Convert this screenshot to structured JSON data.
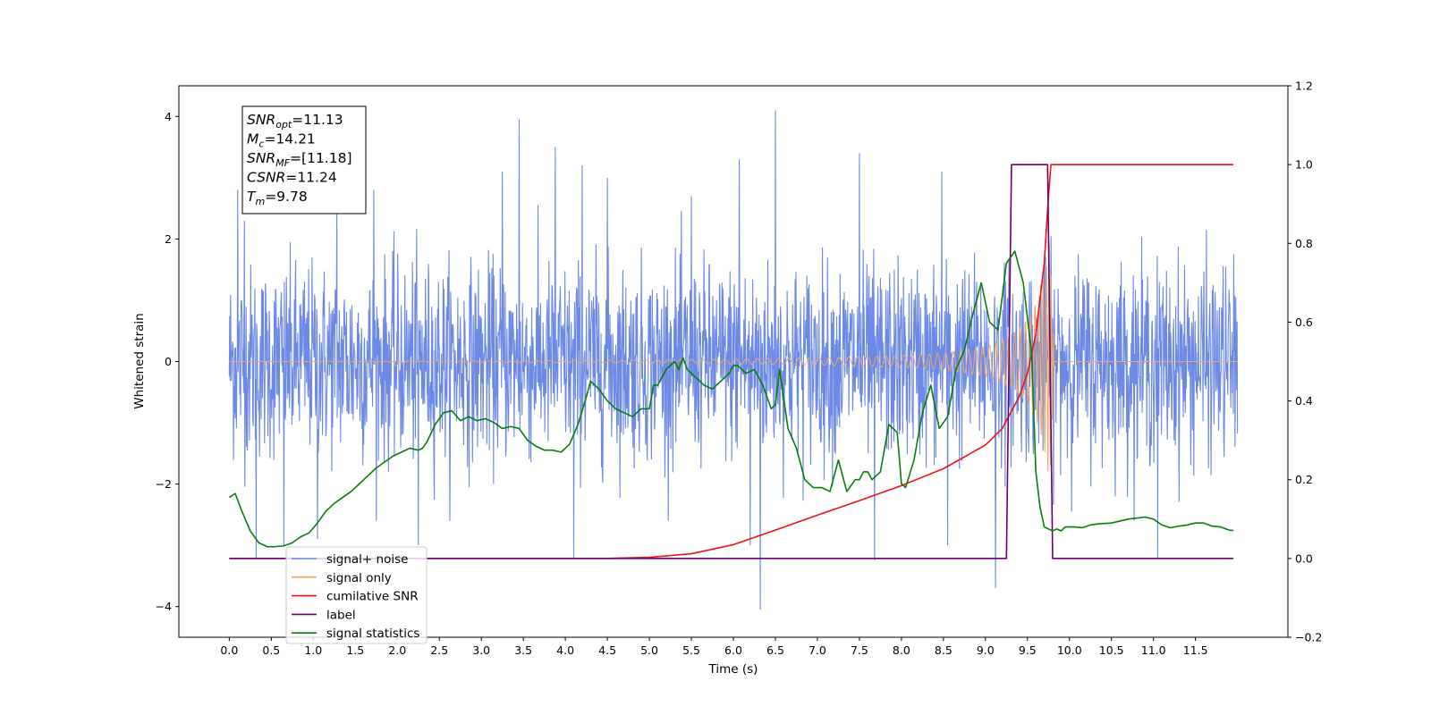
{
  "chart_data": {
    "type": "line",
    "xlabel": "Time (s)",
    "ylabel": "Whitened strain",
    "xlim": [
      -0.6,
      12.6
    ],
    "ylim_left": [
      -4.5,
      4.5
    ],
    "ylim_right": [
      -0.2,
      1.2
    ],
    "x_ticks": [
      "0.0",
      "0.5",
      "1.0",
      "1.5",
      "2.0",
      "2.5",
      "3.0",
      "3.5",
      "4.0",
      "4.5",
      "5.0",
      "5.5",
      "6.0",
      "6.5",
      "7.0",
      "7.5",
      "8.0",
      "8.5",
      "9.0",
      "9.5",
      "10.0",
      "10.5",
      "11.0",
      "11.5"
    ],
    "y_ticks_left": [
      "−4",
      "−2",
      "0",
      "2",
      "4"
    ],
    "y_ticks_right": [
      "−0.2",
      "0.0",
      "0.2",
      "0.4",
      "0.6",
      "0.8",
      "1.0",
      "1.2"
    ],
    "grid": false,
    "legend_position": "lower-left",
    "annotation": {
      "lines": [
        {
          "sym": "SNR",
          "sub": "opt",
          "val": "=11.13"
        },
        {
          "sym": "M",
          "sub": "c",
          "val": "=14.21"
        },
        {
          "sym": "SNR",
          "sub": "MF",
          "val": "=[11.18]"
        },
        {
          "sym": "CSNR",
          "sub": "",
          "val": "=11.24"
        },
        {
          "sym": "T",
          "sub": "m",
          "val": "=9.78"
        }
      ]
    },
    "series": [
      {
        "name": "signal+ noise",
        "color": "#6b89e5",
        "axis": "left",
        "duration": 12.0,
        "sigma": 0.78,
        "peaks": [
          [
            0.1,
            2.8
          ],
          [
            0.18,
            2.3
          ],
          [
            0.32,
            -3.2
          ],
          [
            0.65,
            -3.0
          ],
          [
            1.05,
            -2.9
          ],
          [
            1.28,
            2.5
          ],
          [
            1.72,
            2.8
          ],
          [
            2.25,
            -3.0
          ],
          [
            3.25,
            3.1
          ],
          [
            3.45,
            3.95
          ],
          [
            3.88,
            3.5
          ],
          [
            4.1,
            -3.2
          ],
          [
            4.2,
            3.2
          ],
          [
            4.5,
            3.0
          ],
          [
            5.5,
            2.7
          ],
          [
            6.07,
            3.3
          ],
          [
            6.2,
            -3.0
          ],
          [
            6.32,
            -4.05
          ],
          [
            6.5,
            4.1
          ],
          [
            7.5,
            3.4
          ],
          [
            7.68,
            -3.25
          ],
          [
            8.48,
            3.1
          ],
          [
            8.55,
            -3.0
          ],
          [
            9.12,
            -3.7
          ],
          [
            11.05,
            -3.2
          ]
        ]
      },
      {
        "name": "signal only",
        "color": "#f0a868",
        "axis": "left",
        "chirp_end": 9.78,
        "envelope": [
          [
            0,
            0.0
          ],
          [
            3,
            0.01
          ],
          [
            5,
            0.025
          ],
          [
            6,
            0.04
          ],
          [
            7,
            0.06
          ],
          [
            8,
            0.1
          ],
          [
            8.5,
            0.14
          ],
          [
            9.0,
            0.24
          ],
          [
            9.3,
            0.42
          ],
          [
            9.5,
            0.68
          ],
          [
            9.65,
            1.1
          ],
          [
            9.72,
            1.6
          ],
          [
            9.76,
            1.95
          ],
          [
            9.78,
            1.6
          ],
          [
            9.82,
            0.0
          ]
        ]
      },
      {
        "name": "cumilative SNR",
        "color": "#ee1111",
        "axis": "right",
        "x": [
          0,
          4.5,
          5.0,
          5.5,
          6.0,
          6.5,
          7.0,
          7.5,
          8.0,
          8.5,
          9.0,
          9.2,
          9.4,
          9.5,
          9.6,
          9.7,
          9.75,
          9.78,
          11.95
        ],
        "y": [
          0,
          0,
          0.003,
          0.012,
          0.035,
          0.072,
          0.11,
          0.147,
          0.185,
          0.228,
          0.288,
          0.33,
          0.41,
          0.47,
          0.57,
          0.75,
          0.92,
          1.0,
          1.0
        ]
      },
      {
        "name": "label",
        "color": "#6a006a",
        "axis": "right",
        "x": [
          0,
          9.25,
          9.31,
          9.74,
          9.8,
          11.95
        ],
        "y": [
          0,
          0,
          1,
          1,
          0,
          0
        ]
      },
      {
        "name": "signal statistics",
        "color": "#0a7d0a",
        "axis": "right",
        "x": [
          0,
          0.07,
          0.15,
          0.25,
          0.35,
          0.45,
          0.55,
          0.65,
          0.75,
          0.85,
          0.95,
          1.05,
          1.15,
          1.25,
          1.35,
          1.45,
          1.55,
          1.65,
          1.75,
          1.85,
          1.95,
          2.05,
          2.15,
          2.25,
          2.3,
          2.35,
          2.45,
          2.55,
          2.65,
          2.75,
          2.85,
          2.95,
          3.05,
          3.15,
          3.25,
          3.35,
          3.45,
          3.55,
          3.65,
          3.75,
          3.85,
          3.95,
          4.05,
          4.15,
          4.25,
          4.3,
          4.4,
          4.5,
          4.6,
          4.7,
          4.8,
          4.9,
          5.0,
          5.05,
          5.1,
          5.2,
          5.3,
          5.35,
          5.4,
          5.45,
          5.55,
          5.65,
          5.75,
          5.85,
          5.95,
          6.0,
          6.05,
          6.15,
          6.25,
          6.35,
          6.45,
          6.5,
          6.55,
          6.65,
          6.75,
          6.85,
          6.95,
          7.05,
          7.15,
          7.25,
          7.35,
          7.45,
          7.5,
          7.55,
          7.6,
          7.65,
          7.75,
          7.85,
          7.95,
          8.0,
          8.05,
          8.15,
          8.25,
          8.35,
          8.45,
          8.55,
          8.6,
          8.65,
          8.75,
          8.85,
          8.95,
          9.05,
          9.15,
          9.25,
          9.35,
          9.45,
          9.55,
          9.6,
          9.65,
          9.7,
          9.75,
          9.8,
          9.85,
          9.9,
          9.95,
          10.05,
          10.15,
          10.25,
          10.35,
          10.5,
          10.7,
          10.9,
          11.0,
          11.1,
          11.2,
          11.3,
          11.4,
          11.5,
          11.6,
          11.7,
          11.8,
          11.9,
          11.95
        ],
        "y": [
          0.155,
          0.165,
          0.12,
          0.07,
          0.04,
          0.03,
          0.03,
          0.032,
          0.04,
          0.055,
          0.065,
          0.09,
          0.12,
          0.14,
          0.155,
          0.17,
          0.19,
          0.21,
          0.23,
          0.245,
          0.26,
          0.27,
          0.28,
          0.275,
          0.28,
          0.295,
          0.34,
          0.37,
          0.375,
          0.35,
          0.36,
          0.35,
          0.355,
          0.345,
          0.33,
          0.335,
          0.33,
          0.3,
          0.285,
          0.275,
          0.275,
          0.27,
          0.29,
          0.34,
          0.41,
          0.45,
          0.43,
          0.4,
          0.38,
          0.37,
          0.36,
          0.38,
          0.38,
          0.44,
          0.44,
          0.48,
          0.5,
          0.48,
          0.51,
          0.48,
          0.46,
          0.44,
          0.43,
          0.45,
          0.47,
          0.49,
          0.49,
          0.47,
          0.48,
          0.44,
          0.38,
          0.39,
          0.48,
          0.33,
          0.28,
          0.2,
          0.18,
          0.18,
          0.17,
          0.25,
          0.17,
          0.2,
          0.2,
          0.22,
          0.22,
          0.2,
          0.22,
          0.34,
          0.32,
          0.19,
          0.18,
          0.25,
          0.37,
          0.44,
          0.33,
          0.36,
          0.42,
          0.48,
          0.53,
          0.62,
          0.7,
          0.6,
          0.58,
          0.75,
          0.78,
          0.7,
          0.52,
          0.22,
          0.13,
          0.08,
          0.075,
          0.07,
          0.075,
          0.07,
          0.08,
          0.08,
          0.078,
          0.085,
          0.088,
          0.09,
          0.1,
          0.105,
          0.1,
          0.085,
          0.078,
          0.082,
          0.085,
          0.09,
          0.09,
          0.082,
          0.08,
          0.072,
          0.071
        ]
      }
    ]
  }
}
